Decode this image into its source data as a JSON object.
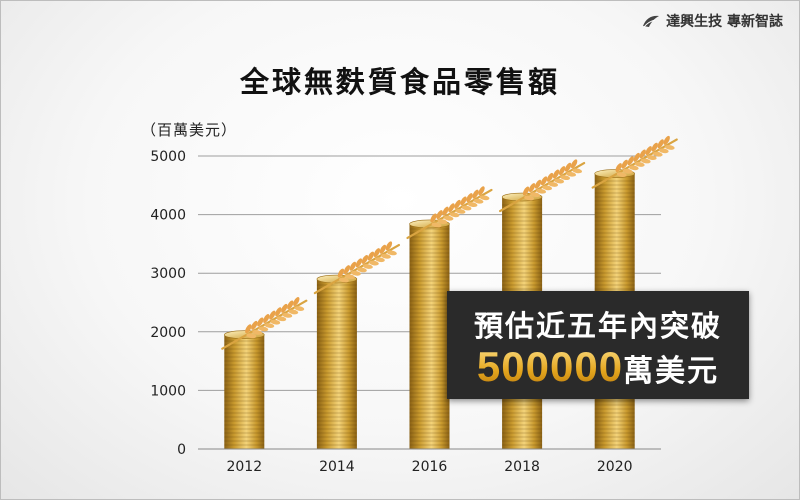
{
  "brand": {
    "name": "達興生技 專新智誌",
    "logo_icon": "leaf-logo-icon"
  },
  "chart_data": {
    "type": "bar",
    "title": "全球無麩質食品零售額",
    "ylabel": "（百萬美元）",
    "xlabel": "",
    "categories": [
      "2012",
      "2014",
      "2016",
      "2018",
      "2020"
    ],
    "values": [
      1950,
      2900,
      3840,
      4300,
      4700
    ],
    "ylim": [
      0,
      5000
    ],
    "yticks": [
      0,
      1000,
      2000,
      3000,
      4000,
      5000
    ],
    "grid": true,
    "bar_style": "stacked gold coins with wheat ears",
    "colors": {
      "coin_light": "#f3d37a",
      "coin_mid": "#c99a2e",
      "coin_dark": "#8a6114",
      "wheat": "#e9a24a"
    }
  },
  "callout": {
    "line1": "預估近五年內突破",
    "number": "500000",
    "unit": "萬美元"
  }
}
